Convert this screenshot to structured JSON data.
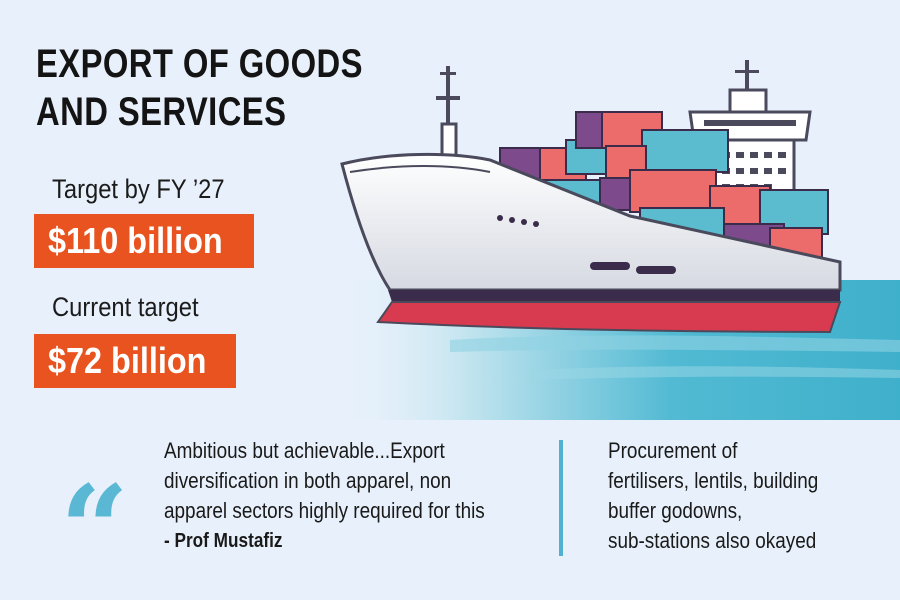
{
  "title": {
    "line1": "EXPORT OF GOODS",
    "line2": "AND SERVICES"
  },
  "target_fy27": {
    "label": "Target by FY ’27",
    "value": "$110 billion"
  },
  "current_target": {
    "label": "Current target",
    "value": "$72 billion"
  },
  "quote": {
    "lines": [
      "Ambitious but achievable...Export",
      "diversification in both apparel, non",
      "apparel sectors highly required for this"
    ],
    "author": "- Prof Mustafiz"
  },
  "side_note": {
    "lines": [
      "Procurement of",
      "fertilisers, lentils, building",
      "buffer godowns,",
      "sub-stations also okayed"
    ]
  },
  "colors": {
    "accent": "#e8531f",
    "quote": "#5ab8d4",
    "background": "#e8f1fb"
  },
  "icons": {
    "quote": "double-quote-icon",
    "ship": "cargo-ship-illustration"
  }
}
